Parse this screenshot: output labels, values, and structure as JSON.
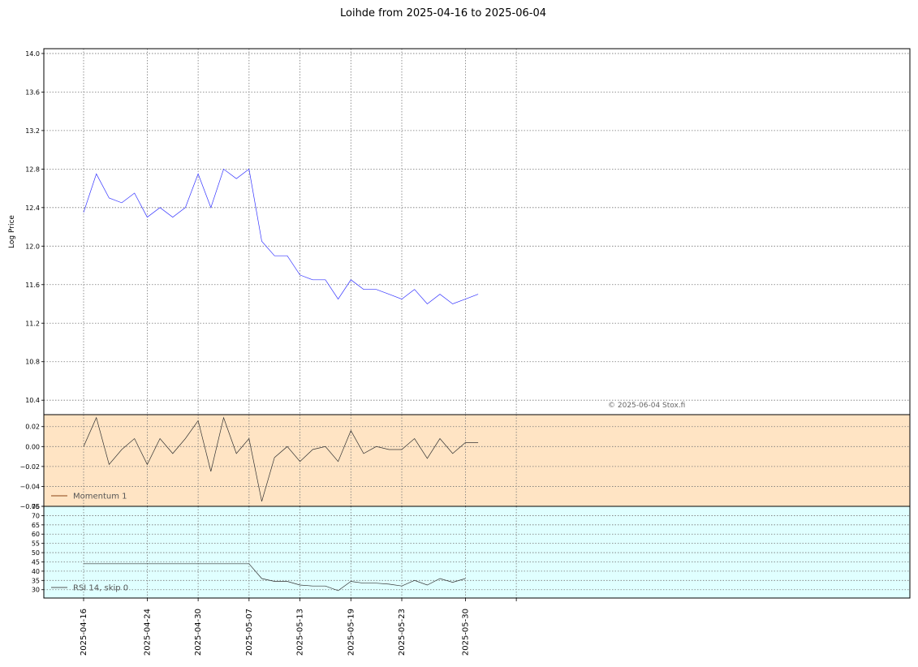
{
  "chart_data": {
    "type": "line",
    "title": "Loihde from 2025-04-16 to 2025-06-04",
    "copyright": "© 2025-06-04 Stox.fi",
    "x": [
      "2025-04-16",
      "2025-04-17",
      "2025-04-18",
      "2025-04-22",
      "2025-04-23",
      "2025-04-24",
      "2025-04-25",
      "2025-04-28",
      "2025-04-29",
      "2025-04-30",
      "2025-05-02",
      "2025-05-05",
      "2025-05-06",
      "2025-05-07",
      "2025-05-08",
      "2025-05-09",
      "2025-05-12",
      "2025-05-13",
      "2025-05-14",
      "2025-05-15",
      "2025-05-16",
      "2025-05-19",
      "2025-05-20",
      "2025-05-21",
      "2025-05-22",
      "2025-05-23",
      "2025-05-26",
      "2025-05-27",
      "2025-05-28",
      "2025-05-29",
      "2025-05-30",
      "2025-06-02",
      "2025-06-03",
      "2025-06-04"
    ],
    "x_tick_labels": [
      "2025-04-16",
      "2025-04-24",
      "2025-04-30",
      "2025-05-07",
      "2025-05-13",
      "2025-05-19",
      "2025-05-23",
      "2025-05-30"
    ],
    "panels": [
      {
        "name": "price",
        "ylabel": "Log Price",
        "ylim": [
          10.25,
          14.05
        ],
        "y_ticks": [
          "10.4",
          "10.8",
          "11.2",
          "11.6",
          "12.0",
          "12.4",
          "12.8",
          "13.2",
          "13.6",
          "14.0"
        ],
        "background": "#ffffff",
        "grid": true,
        "series": [
          {
            "color": "#3333ff",
            "values": [
              12.35,
              12.75,
              12.5,
              12.45,
              12.55,
              12.3,
              12.4,
              12.3,
              12.4,
              12.75,
              12.4,
              12.8,
              12.7,
              12.8,
              12.05,
              11.9,
              11.9,
              11.7,
              11.65,
              11.65,
              11.45,
              11.65,
              11.55,
              11.55,
              11.5,
              11.45,
              11.55,
              11.4,
              11.5,
              11.4,
              11.45,
              11.5,
              null,
              null
            ]
          }
        ]
      },
      {
        "name": "momentum",
        "ylim": [
          -0.06,
          0.032
        ],
        "y_ticks": [
          "0.02",
          "0.00",
          "−0.02",
          "−0.04",
          "−0.06"
        ],
        "background": "#ffe4c4",
        "grid": true,
        "legend": "Momentum 1",
        "legend_color": "#8b4513",
        "series": [
          {
            "color": "#333333",
            "values": [
              0.0,
              0.029,
              -0.018,
              -0.003,
              0.008,
              -0.018,
              0.008,
              -0.007,
              0.008,
              0.026,
              -0.025,
              0.029,
              -0.007,
              0.008,
              -0.055,
              -0.011,
              0.0,
              -0.015,
              -0.003,
              0.0,
              -0.015,
              0.016,
              -0.007,
              0.0,
              -0.003,
              -0.003,
              0.008,
              -0.012,
              0.008,
              -0.007,
              0.004,
              0.004,
              null,
              null
            ]
          }
        ]
      },
      {
        "name": "rsi",
        "ylim": [
          25.5,
          75
        ],
        "y_ticks": [
          "30",
          "35",
          "40",
          "45",
          "50",
          "55",
          "60",
          "65",
          "70",
          "75"
        ],
        "background": "#e0ffff",
        "grid": true,
        "legend": "RSI 14, skip 0",
        "legend_color": "#555555",
        "series": [
          {
            "color": "#333333",
            "values": [
              44,
              44,
              44,
              44,
              44,
              44,
              44,
              44,
              44,
              44,
              44,
              44,
              44,
              44,
              36,
              34.5,
              34.5,
              32.5,
              32,
              32,
              29.5,
              34.5,
              33.5,
              33.5,
              33,
              32,
              35,
              32.5,
              36,
              34,
              36,
              null,
              null,
              null
            ]
          }
        ]
      }
    ]
  }
}
